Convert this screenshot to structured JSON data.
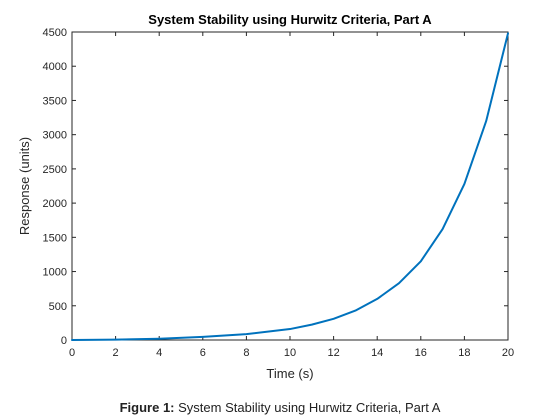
{
  "figure": {
    "caption_label": "Figure 1:",
    "caption_text": " System Stability using Hurwitz Criteria, Part A"
  },
  "chart_data": {
    "type": "line",
    "title": "System Stability using Hurwitz Criteria, Part A",
    "xlabel": "Time (s)",
    "ylabel": "Response (units)",
    "xlim": [
      0,
      20
    ],
    "ylim": [
      0,
      4500
    ],
    "xticks": [
      0,
      2,
      4,
      6,
      8,
      10,
      12,
      14,
      16,
      18,
      20
    ],
    "yticks": [
      0,
      500,
      1000,
      1500,
      2000,
      2500,
      3000,
      3500,
      4000,
      4500
    ],
    "grid": false,
    "series": [
      {
        "color": "#0072BD",
        "x": [
          0,
          2,
          4,
          6,
          8,
          10,
          11,
          12,
          13,
          14,
          15,
          16,
          17,
          18,
          19,
          20
        ],
        "y": [
          0,
          5,
          18,
          45,
          85,
          160,
          225,
          310,
          430,
          600,
          830,
          1150,
          1620,
          2280,
          3200,
          4480
        ]
      }
    ]
  }
}
